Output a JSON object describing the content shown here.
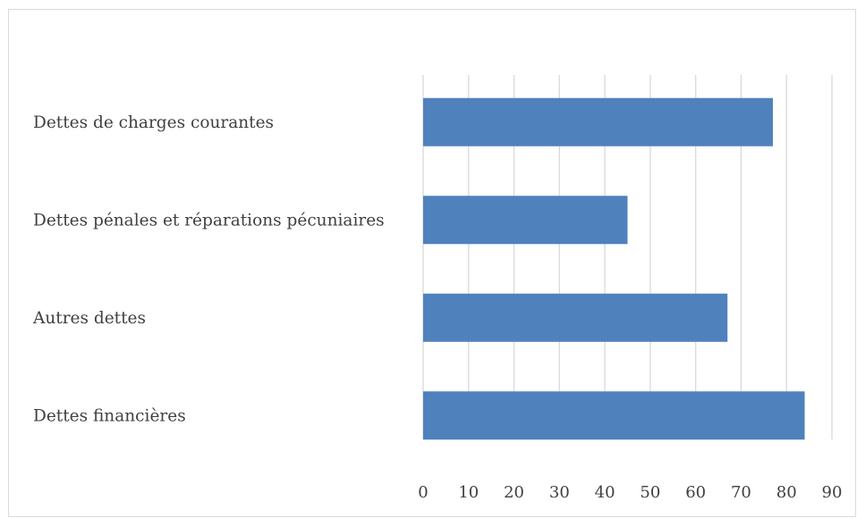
{
  "chart_data": {
    "type": "bar",
    "orientation": "horizontal",
    "title": "",
    "xlabel": "",
    "ylabel": "",
    "categories": [
      "Dettes de charges courantes",
      "Dettes pénales et réparations pécuniaires",
      "Autres dettes",
      "Dettes financières"
    ],
    "values": [
      77,
      45,
      67,
      84
    ],
    "xlim": [
      0,
      90
    ],
    "x_ticks": [
      "0",
      "10",
      "20",
      "30",
      "40",
      "50",
      "60",
      "70",
      "80",
      "90"
    ],
    "grid": "vertical",
    "legend": "none",
    "bar_color": "#4f81bd",
    "grid_color": "#d9d9d9",
    "text_color": "#404040"
  }
}
